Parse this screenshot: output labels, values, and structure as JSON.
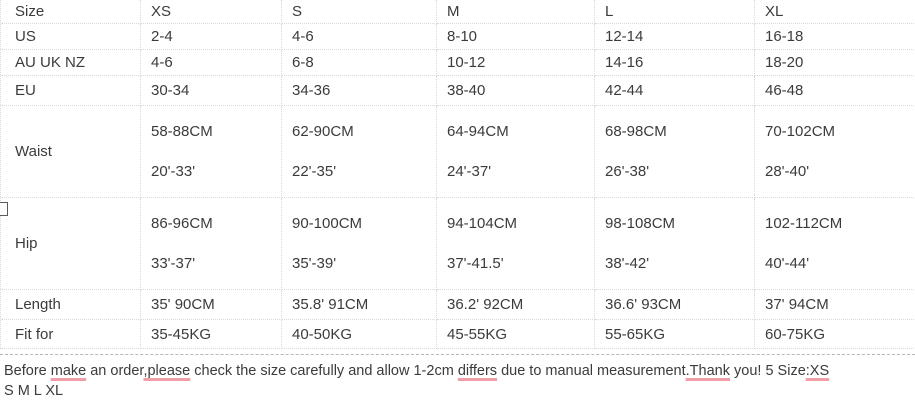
{
  "page": {
    "background": "#ffffff",
    "text_color": "#3b3b3b",
    "border_color": "#d9d9d9",
    "spellcheck_underline_color": "#f09fa8"
  },
  "table": {
    "header": {
      "label": "Size",
      "values": [
        "XS",
        "S",
        "M",
        "L",
        "XL"
      ]
    },
    "rows": [
      {
        "label": "US",
        "values": [
          "2-4",
          "4-6",
          "8-10",
          "12-14",
          "16-18"
        ]
      },
      {
        "label": "AU UK NZ",
        "values": [
          "4-6",
          "6-8",
          "10-12",
          "14-16",
          "18-20"
        ]
      },
      {
        "label": "EU",
        "values": [
          "30-34",
          "34-36",
          "38-40",
          "42-44",
          "46-48"
        ]
      },
      {
        "label": "Waist",
        "values": [
          [
            "58-88CM",
            "20'-33'"
          ],
          [
            "62-90CM",
            "22'-35'"
          ],
          [
            "64-94CM",
            "24'-37'"
          ],
          [
            "68-98CM",
            "26'-38'"
          ],
          [
            "70-102CM",
            "28'-40'"
          ]
        ]
      },
      {
        "label": "Hip",
        "values": [
          [
            "86-96CM",
            "33'-37'"
          ],
          [
            "90-100CM",
            "35'-39'"
          ],
          [
            "94-104CM",
            "37'-41.5'"
          ],
          [
            "98-108CM",
            "38'-42'"
          ],
          [
            "102-112CM",
            "40'-44'"
          ]
        ]
      },
      {
        "label": "Length",
        "values": [
          "35' 90CM",
          "35.8' 91CM",
          "36.2' 92CM",
          "36.6' 93CM",
          "37' 94CM"
        ]
      },
      {
        "label": "Fit for",
        "values": [
          "35-45KG",
          "40-50KG",
          "45-55KG",
          "55-65KG",
          "60-75KG"
        ]
      }
    ]
  },
  "glyph": {
    "name": "missing-character-box"
  },
  "note": {
    "line1_segments": [
      {
        "text": "Before ",
        "underline": false
      },
      {
        "text": "make",
        "underline": true
      },
      {
        "text": " an order",
        "underline": false
      },
      {
        "text": ",please",
        "underline": true
      },
      {
        "text": " check the size carefully and allow 1-2cm ",
        "underline": false
      },
      {
        "text": "differs",
        "underline": true
      },
      {
        "text": " due to manual measurement",
        "underline": false
      },
      {
        "text": ".Thank",
        "underline": true
      },
      {
        "text": " you! 5 Size",
        "underline": false
      },
      {
        "text": ":XS",
        "underline": true
      }
    ],
    "line2": "S M L XL"
  }
}
